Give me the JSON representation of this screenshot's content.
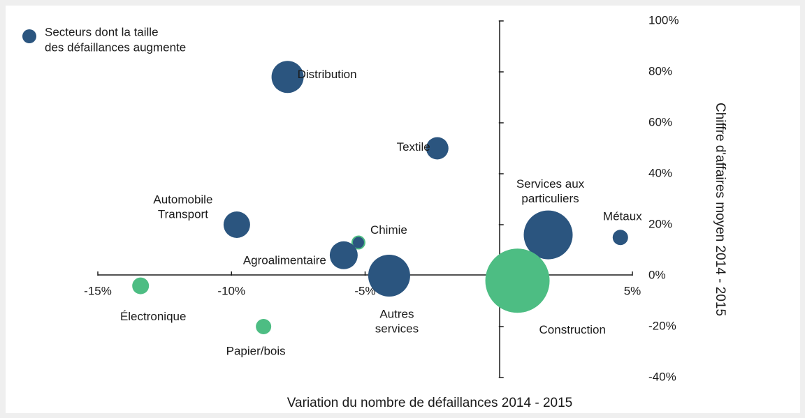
{
  "chart_data": {
    "type": "bubble",
    "legend": {
      "lines": [
        "Secteurs dont la taille",
        "des défaillances augmente"
      ],
      "color": "#2b557f",
      "position": "top-left"
    },
    "x_label": "Variation du nombre de défaillances 2014 - 2015",
    "y_label": "Chiffre d'affaires moyen 2014 - 2015",
    "xlim": [
      -15,
      5
    ],
    "xticks": [
      {
        "value": -15,
        "label": "-15%"
      },
      {
        "value": -10,
        "label": "-10%"
      },
      {
        "value": -5,
        "label": "-5%"
      },
      {
        "value": 0,
        "label": "0%"
      },
      {
        "value": 5,
        "label": "5%"
      }
    ],
    "ylim": [
      -40,
      100
    ],
    "yticks": [
      {
        "value": -40,
        "label": "-40%"
      },
      {
        "value": -20,
        "label": "-20%"
      },
      {
        "value": 0,
        "label": "0%"
      },
      {
        "value": 20,
        "label": "20%"
      },
      {
        "value": 40,
        "label": "40%"
      },
      {
        "value": 60,
        "label": "60%"
      },
      {
        "value": 80,
        "label": "80%"
      },
      {
        "value": 100,
        "label": "100%"
      }
    ],
    "points": [
      {
        "label": [
          "Distribution"
        ],
        "x": -7.9,
        "y": 78,
        "size": 23,
        "color": "#2b557f"
      },
      {
        "label": [
          "Textile"
        ],
        "x": -2.3,
        "y": 50,
        "size": 16,
        "color": "#2b557f"
      },
      {
        "label": [
          "Automobile",
          "Transport"
        ],
        "x": -9.8,
        "y": 20,
        "size": 19,
        "color": "#2b557f"
      },
      {
        "label": [
          "Chimie"
        ],
        "x": -5.25,
        "y": 13,
        "size": 9,
        "color": "#2b557f",
        "stroke": "#4dbd83"
      },
      {
        "label": [
          "Agroalimentaire"
        ],
        "x": -5.8,
        "y": 8,
        "size": 20,
        "color": "#2b557f"
      },
      {
        "label": [
          "Autres",
          "services"
        ],
        "x": -4.1,
        "y": 0,
        "size": 30,
        "color": "#2b557f"
      },
      {
        "label": [
          "Services aux",
          "particuliers"
        ],
        "x": 1.85,
        "y": 16,
        "size": 35,
        "color": "#2b557f"
      },
      {
        "label": [
          "Métaux"
        ],
        "x": 4.55,
        "y": 15,
        "size": 11,
        "color": "#2b557f"
      },
      {
        "label": [
          "Construction"
        ],
        "x": 0.7,
        "y": -2,
        "size": 46,
        "color": "#4dbd83"
      },
      {
        "label": [
          "Électronique"
        ],
        "x": -13.4,
        "y": -4,
        "size": 12,
        "color": "#4dbd83"
      },
      {
        "label": [
          "Papier/bois"
        ],
        "x": -8.8,
        "y": -20,
        "size": 11,
        "color": "#4dbd83"
      }
    ]
  }
}
